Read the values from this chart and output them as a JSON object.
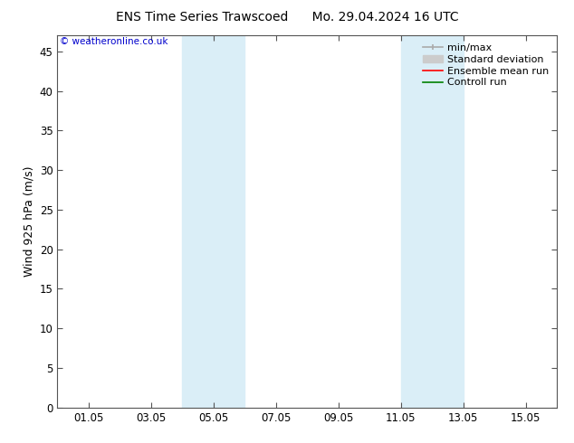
{
  "title": "ENS Time Series Trawscoed      Mo. 29.04.2024 16 UTC",
  "ylabel": "Wind 925 hPa (m/s)",
  "copyright": "© weatheronline.co.uk",
  "ylim": [
    0,
    47
  ],
  "yticks": [
    0,
    5,
    10,
    15,
    20,
    25,
    30,
    35,
    40,
    45
  ],
  "xtick_labels": [
    "01.05",
    "03.05",
    "05.05",
    "07.05",
    "09.05",
    "11.05",
    "13.05",
    "15.05"
  ],
  "xtick_positions": [
    1,
    3,
    5,
    7,
    9,
    11,
    13,
    15
  ],
  "xmin": 0,
  "xmax": 16,
  "blue_bands": [
    {
      "xstart": 4.0,
      "xend": 6.0
    },
    {
      "xstart": 11.0,
      "xend": 13.0
    }
  ],
  "band_color": "#daeef7",
  "legend_items": [
    {
      "label": "min/max",
      "color": "#aaaaaa",
      "lw": 1.2
    },
    {
      "label": "Standard deviation",
      "color": "#cccccc",
      "lw": 6
    },
    {
      "label": "Ensemble mean run",
      "color": "#ff0000",
      "lw": 1.2
    },
    {
      "label": "Controll run",
      "color": "#008000",
      "lw": 1.2
    }
  ],
  "bg_color": "#ffffff",
  "plot_bg_color": "#ffffff",
  "title_fontsize": 10,
  "tick_fontsize": 8.5,
  "ylabel_fontsize": 9,
  "legend_fontsize": 8
}
